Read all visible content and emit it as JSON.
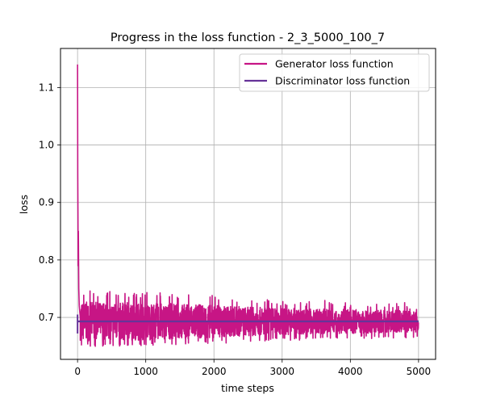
{
  "chart_data": {
    "type": "line",
    "title": "Progress in the loss function - 2_3_5000_100_7",
    "xlabel": "time steps",
    "ylabel": "loss",
    "xlim": [
      -250,
      5250
    ],
    "ylim": [
      0.627,
      1.168
    ],
    "xticks": [
      0,
      1000,
      2000,
      3000,
      4000,
      5000
    ],
    "xtick_labels": [
      "0",
      "1000",
      "2000",
      "3000",
      "4000",
      "5000"
    ],
    "yticks": [
      0.7,
      0.8,
      0.9,
      1.0,
      1.1
    ],
    "ytick_labels": [
      "0.7",
      "0.8",
      "0.9",
      "1.0",
      "1.1"
    ],
    "grid": true,
    "legend_position": "top-right",
    "series": [
      {
        "name": "Generator loss function",
        "color": "#c71585",
        "description_values": {
          "x": [
            0,
            3,
            6,
            9,
            12,
            18,
            25,
            40,
            60,
            100,
            200,
            400,
            700,
            1000,
            1500,
            2000,
            2500,
            3000,
            3500,
            4000,
            4500,
            4999
          ],
          "y": [
            1.14,
            0.95,
            0.88,
            0.79,
            0.85,
            0.75,
            0.72,
            0.7,
            0.695,
            0.693,
            0.69,
            0.692,
            0.693,
            0.692,
            0.693,
            0.692,
            0.693,
            0.693,
            0.692,
            0.693,
            0.693,
            0.693
          ]
        },
        "band": {
          "segments_x": [
            0,
            100,
            500,
            1000,
            1500,
            2000,
            2500,
            3000,
            3500,
            4000,
            4500,
            5000
          ],
          "upper": [
            0.73,
            0.735,
            0.735,
            0.733,
            0.73,
            0.727,
            0.722,
            0.72,
            0.718,
            0.717,
            0.715,
            0.713
          ],
          "lower": [
            0.655,
            0.655,
            0.656,
            0.657,
            0.658,
            0.66,
            0.663,
            0.665,
            0.667,
            0.668,
            0.668,
            0.67
          ]
        }
      },
      {
        "name": "Discriminator loss function",
        "color": "#663399",
        "x": [
          0,
          5000
        ],
        "y": [
          0.693,
          0.693
        ]
      }
    ]
  }
}
